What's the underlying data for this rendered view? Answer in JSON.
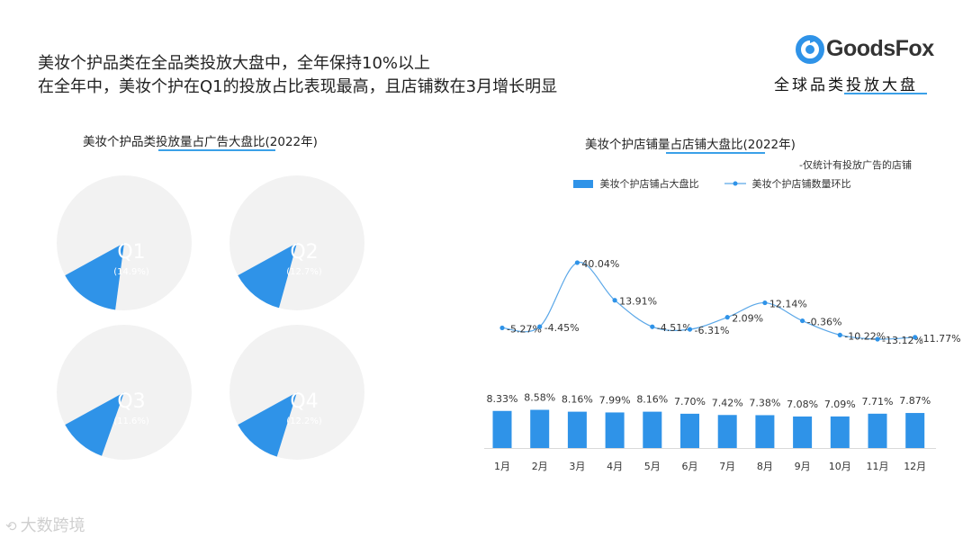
{
  "headline": {
    "line1": "美妆个护品类在全品类投放大盘中，全年保持10%以上",
    "line2": "在全年中，美妆个护在Q1的投放占比表现最高，且店铺数在3月增长明显"
  },
  "brand": {
    "name": "GoodsFox",
    "subtitle": "全球品类投放大盘"
  },
  "colors": {
    "accent": "#2f93e8",
    "pie_bg": "#f2f2f2",
    "line": "#5aa7e8"
  },
  "watermark": "大数跨境",
  "chart_data": [
    {
      "type": "pie",
      "title": "美妆个护品类投放量占广告大盘比(2022年)",
      "series": [
        {
          "name": "Q1",
          "label": "Q1",
          "value": 14.9,
          "value_label": "(14.9%)"
        },
        {
          "name": "Q2",
          "label": "Q2",
          "value": 12.7,
          "value_label": "(12.7%)"
        },
        {
          "name": "Q3",
          "label": "Q3",
          "value": 11.6,
          "value_label": "(11.6%)"
        },
        {
          "name": "Q4",
          "label": "Q4",
          "value": 12.2,
          "value_label": "(12.2%)"
        }
      ]
    },
    {
      "type": "bar",
      "title": "美妆个护店铺量占店铺大盘比(2022年)",
      "note": "-仅统计有投放广告的店铺",
      "categories": [
        "1月",
        "2月",
        "3月",
        "4月",
        "5月",
        "6月",
        "7月",
        "8月",
        "9月",
        "10月",
        "11月",
        "12月"
      ],
      "series": [
        {
          "name": "美妆个护店铺占大盘比",
          "type": "bar",
          "values": [
            8.33,
            8.58,
            8.16,
            7.99,
            8.16,
            7.7,
            7.42,
            7.38,
            7.08,
            7.09,
            7.71,
            7.87
          ],
          "labels": [
            "8.33%",
            "8.58%",
            "8.16%",
            "7.99%",
            "8.16%",
            "7.70%",
            "7.42%",
            "7.38%",
            "7.08%",
            "7.09%",
            "7.71%",
            "7.87%"
          ]
        },
        {
          "name": "美妆个护店铺数量环比",
          "type": "line",
          "values": [
            -5.27,
            -4.45,
            40.04,
            13.91,
            -4.51,
            -6.31,
            2.09,
            12.14,
            -0.36,
            -10.22,
            -13.12,
            -11.77
          ],
          "labels": [
            "-5.27%",
            "-4.45%",
            "40.04%",
            "13.91%",
            "-4.51%",
            "-6.31%",
            "2.09%",
            "12.14%",
            "-0.36%",
            "-10.22%",
            "-13.12%",
            "-11.77%"
          ]
        }
      ]
    }
  ]
}
